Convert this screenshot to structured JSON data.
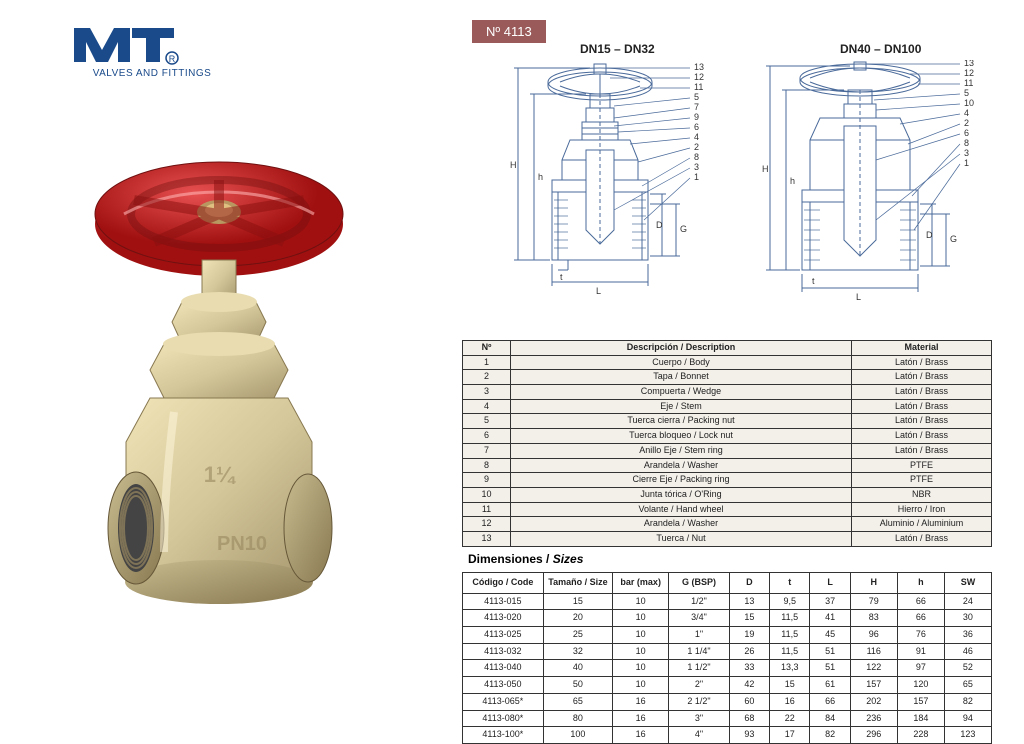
{
  "logo": {
    "tagline": "VALVES AND FITTINGS",
    "brand_color": "#1a4a8a"
  },
  "product_number": "Nº 4113",
  "product_number_bg": "#9a5a5a",
  "diagrams": {
    "left_title": "DN15 – DN32",
    "right_title": "DN40 – DN100",
    "line_color": "#4a6a9a",
    "callouts_left": [
      "13",
      "12",
      "11",
      "5",
      "7",
      "9",
      "6",
      "4",
      "2",
      "8",
      "3",
      "1"
    ],
    "callouts_right": [
      "13",
      "12",
      "11",
      "5",
      "10",
      "4",
      "2",
      "6",
      "8",
      "3",
      "1"
    ],
    "dims": [
      "H",
      "h",
      "L",
      "t",
      "D",
      "G"
    ]
  },
  "photo": {
    "handwheel_color": "#c62020",
    "body_color": "#d4c89a",
    "shadow_color": "#888888"
  },
  "parts_table": {
    "headers": {
      "no": "Nº",
      "desc": "Descripción / Description",
      "mat": "Material"
    },
    "rows": [
      {
        "no": "1",
        "desc": "Cuerpo / Body",
        "mat": "Latón / Brass"
      },
      {
        "no": "2",
        "desc": "Tapa / Bonnet",
        "mat": "Latón / Brass"
      },
      {
        "no": "3",
        "desc": "Compuerta / Wedge",
        "mat": "Latón / Brass"
      },
      {
        "no": "4",
        "desc": "Eje / Stem",
        "mat": "Latón / Brass"
      },
      {
        "no": "5",
        "desc": "Tuerca cierra / Packing nut",
        "mat": "Latón / Brass"
      },
      {
        "no": "6",
        "desc": "Tuerca bloqueo / Lock nut",
        "mat": "Latón / Brass"
      },
      {
        "no": "7",
        "desc": "Anillo Eje / Stem ring",
        "mat": "Latón / Brass"
      },
      {
        "no": "8",
        "desc": "Arandela / Washer",
        "mat": "PTFE"
      },
      {
        "no": "9",
        "desc": "Cierre Eje / Packing ring",
        "mat": "PTFE"
      },
      {
        "no": "10",
        "desc": "Junta tórica / O'Ring",
        "mat": "NBR"
      },
      {
        "no": "11",
        "desc": "Volante / Hand wheel",
        "mat": "Hierro / Iron"
      },
      {
        "no": "12",
        "desc": "Arandela / Washer",
        "mat": "Aluminio / Aluminium"
      },
      {
        "no": "13",
        "desc": "Tuerca / Nut",
        "mat": "Latón / Brass"
      }
    ]
  },
  "dim_title": {
    "a": "Dimensiones / ",
    "b": "Sizes"
  },
  "dim_table": {
    "headers": [
      "Código / Code",
      "Tamaño / Size",
      "bar (max)",
      "G (BSP)",
      "D",
      "t",
      "L",
      "H",
      "h",
      "SW"
    ],
    "col_widths": [
      "72",
      "62",
      "50",
      "54",
      "36",
      "36",
      "36",
      "42",
      "42",
      "42"
    ],
    "rows": [
      [
        "4113-015",
        "15",
        "10",
        "1/2\"",
        "13",
        "9,5",
        "37",
        "79",
        "66",
        "24"
      ],
      [
        "4113-020",
        "20",
        "10",
        "3/4\"",
        "15",
        "11,5",
        "41",
        "83",
        "66",
        "30"
      ],
      [
        "4113-025",
        "25",
        "10",
        "1\"",
        "19",
        "11,5",
        "45",
        "96",
        "76",
        "36"
      ],
      [
        "4113-032",
        "32",
        "10",
        "1 1/4\"",
        "26",
        "11,5",
        "51",
        "116",
        "91",
        "46"
      ],
      [
        "4113-040",
        "40",
        "10",
        "1 1/2\"",
        "33",
        "13,3",
        "51",
        "122",
        "97",
        "52"
      ],
      [
        "4113-050",
        "50",
        "10",
        "2\"",
        "42",
        "15",
        "61",
        "157",
        "120",
        "65"
      ],
      [
        "4113-065*",
        "65",
        "16",
        "2 1/2\"",
        "60",
        "16",
        "66",
        "202",
        "157",
        "82"
      ],
      [
        "4113-080*",
        "80",
        "16",
        "3\"",
        "68",
        "22",
        "84",
        "236",
        "184",
        "94"
      ],
      [
        "4113-100*",
        "100",
        "16",
        "4\"",
        "93",
        "17",
        "82",
        "296",
        "228",
        "123"
      ]
    ]
  }
}
